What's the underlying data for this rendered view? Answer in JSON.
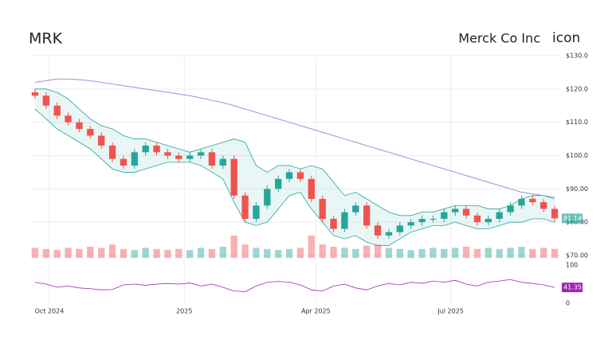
{
  "header": {
    "symbol": "MRK",
    "company": "Merck Co Inc",
    "icon": "icon"
  },
  "chart_data": {
    "type": "candlestick",
    "xticks": [
      {
        "value": 1.3,
        "label": "Oct 2024"
      },
      {
        "value": 13.5,
        "label": "2025"
      },
      {
        "value": 25.4,
        "label": "Apr 2025"
      },
      {
        "value": 37.6,
        "label": "Jul 2025"
      }
    ],
    "ylim": [
      70,
      130
    ],
    "yticks": [
      {
        "value": 130,
        "label": "$130.0"
      },
      {
        "value": 120,
        "label": "$120.0"
      },
      {
        "value": 110,
        "label": "$110.0"
      },
      {
        "value": 100,
        "label": "$100.0"
      },
      {
        "value": 90,
        "label": "$90.00"
      },
      {
        "value": 80,
        "label": "$80.00"
      },
      {
        "value": 70,
        "label": "$70.00"
      }
    ],
    "open": [
      119,
      118,
      115,
      112,
      110,
      108,
      106,
      103,
      99,
      97,
      101,
      103,
      101,
      100,
      99,
      100,
      101,
      97,
      99,
      88,
      81,
      85,
      90,
      93,
      95,
      93,
      87,
      81,
      78,
      83,
      85,
      79,
      76,
      77,
      79,
      80,
      81,
      81,
      83,
      84,
      82,
      80,
      81,
      83,
      85,
      87,
      86,
      84
    ],
    "high": [
      120,
      119,
      116,
      113,
      111,
      109,
      107,
      104,
      100,
      102,
      104,
      104,
      102,
      101,
      101,
      102,
      102,
      100,
      100,
      89,
      86,
      91,
      94,
      96,
      96,
      94,
      88,
      82,
      84,
      86,
      86,
      80,
      78,
      80,
      81,
      82,
      82,
      84,
      85,
      85,
      83,
      82,
      84,
      86,
      88,
      88,
      87,
      85
    ],
    "low": [
      117,
      114,
      111,
      109,
      107,
      105,
      102,
      98,
      96,
      96,
      100,
      100,
      99,
      98,
      98,
      99,
      96,
      96,
      87,
      80,
      80,
      84,
      89,
      92,
      92,
      86,
      80,
      77,
      77,
      82,
      78,
      75,
      75,
      76,
      78,
      79,
      80,
      80,
      82,
      81,
      79,
      79,
      80,
      82,
      84,
      85,
      83,
      80
    ],
    "close": [
      118,
      115,
      112,
      110,
      108,
      106,
      103,
      99,
      97,
      101,
      103,
      101,
      100,
      99,
      100,
      101,
      97,
      99,
      88,
      81,
      85,
      90,
      93,
      95,
      93,
      87,
      81,
      78,
      83,
      85,
      79,
      76,
      77,
      79,
      80,
      81,
      81,
      83,
      84,
      82,
      80,
      81,
      83,
      85,
      87,
      86,
      84,
      81.14
    ],
    "bollinger_upper": [
      120,
      120,
      119,
      117,
      114,
      111,
      109,
      108,
      106,
      105,
      105,
      104,
      103,
      102,
      101,
      102,
      103,
      104,
      105,
      104,
      97,
      95,
      97,
      97,
      96,
      97,
      96,
      92,
      88,
      89,
      87,
      85,
      83,
      82,
      82,
      83,
      83,
      84,
      85,
      85,
      85,
      84,
      84,
      85,
      87,
      88,
      88,
      87
    ],
    "bollinger_lower": [
      114,
      111,
      108,
      106,
      104,
      102,
      99,
      96,
      95,
      95,
      96,
      97,
      98,
      98,
      98,
      97,
      95,
      93,
      86,
      80,
      79,
      80,
      84,
      88,
      89,
      84,
      80,
      76,
      75,
      76,
      74,
      73,
      73,
      75,
      77,
      78,
      79,
      79,
      80,
      79,
      78,
      78,
      79,
      80,
      80,
      81,
      81,
      80
    ],
    "sma200": [
      122,
      122.5,
      123,
      123,
      122.8,
      122.5,
      122,
      121.5,
      121,
      120.5,
      120,
      119.5,
      119,
      118.5,
      118,
      117.3,
      116.6,
      115.9,
      115,
      114,
      113,
      112,
      111,
      110,
      109,
      108,
      107,
      106,
      105,
      104,
      103,
      102,
      101,
      100,
      99,
      98,
      97,
      96,
      95,
      94,
      93,
      92,
      91,
      90,
      89,
      88.5,
      88,
      87.5
    ],
    "volume": [
      9,
      8,
      7,
      9,
      8,
      10,
      9,
      12,
      8,
      7,
      9,
      8,
      7,
      8,
      7,
      9,
      8,
      10,
      20,
      12,
      9,
      8,
      7,
      8,
      9,
      20,
      12,
      10,
      9,
      8,
      11,
      12,
      9,
      8,
      7,
      8,
      9,
      8,
      9,
      10,
      8,
      9,
      8,
      9,
      10,
      8,
      9,
      8
    ],
    "rsi": [
      55,
      50,
      42,
      45,
      40,
      38,
      35,
      36,
      48,
      50,
      47,
      50,
      52,
      50,
      53,
      45,
      50,
      42,
      32,
      30,
      45,
      55,
      57,
      55,
      48,
      35,
      32,
      45,
      50,
      40,
      35,
      45,
      52,
      48,
      55,
      52,
      58,
      55,
      60,
      50,
      45,
      55,
      58,
      62,
      55,
      52,
      48,
      41.35
    ],
    "rsi_ylim": [
      0,
      100
    ],
    "rsi_yticks": [
      100,
      0
    ],
    "grid": true,
    "up_color": "#26a69a",
    "down_color": "#ef5350",
    "band_color": "#26a69a",
    "sma_color": "#9c8fd6",
    "rsi_color": "#9c27b0"
  }
}
